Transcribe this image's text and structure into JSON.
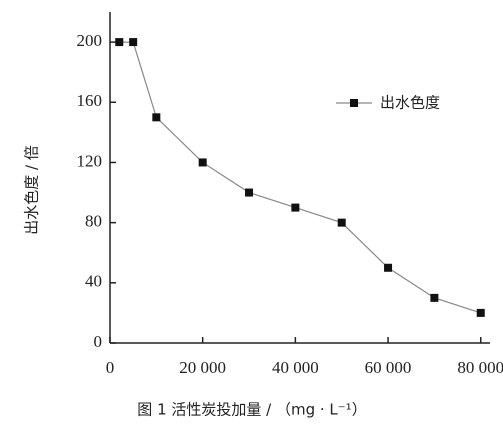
{
  "chart_data": {
    "type": "line",
    "caption": "图 1   活性炭投加量 / （mg · L⁻¹）",
    "y_label": "出水色度 / 倍",
    "x": [
      2000,
      5000,
      10000,
      20000,
      30000,
      40000,
      50000,
      60000,
      70000,
      80000
    ],
    "series": [
      {
        "name": "出水色度",
        "color": "#111111",
        "line_color": "#888888",
        "values": [
          200,
          200,
          150,
          120,
          100,
          90,
          80,
          50,
          30,
          20
        ]
      }
    ],
    "xlim": [
      0,
      82000
    ],
    "xticks": [
      0,
      {
        "value": 20000,
        "label": "20 000"
      },
      {
        "value": 40000,
        "label": "40 000"
      },
      {
        "value": 60000,
        "label": "60 000"
      },
      {
        "value": 80000,
        "label": "80 000"
      }
    ],
    "ylim": [
      0,
      220
    ],
    "yticks": [
      0,
      40,
      80,
      120,
      160,
      200
    ],
    "legend": "upper right"
  }
}
